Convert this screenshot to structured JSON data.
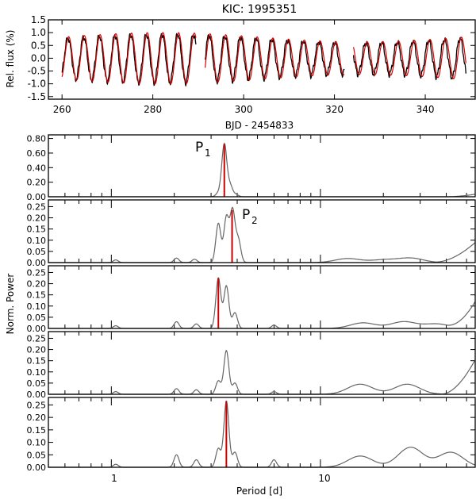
{
  "chart_data": [
    {
      "type": "line",
      "title": "KIC: 1995351",
      "xlabel": "BJD - 2454833",
      "ylabel": "Rel. flux (%)",
      "xlim": [
        257,
        351
      ],
      "ylim": [
        -1.6,
        1.5
      ],
      "x_ticks": [
        260,
        280,
        300,
        320,
        340
      ],
      "y_ticks": [
        -1.5,
        -1.0,
        -0.5,
        0.0,
        0.5,
        1.0,
        1.5
      ],
      "y_tick_labels": [
        "-1.5",
        "-1.0",
        "-0.5",
        "0.0",
        "0.5",
        "1.0",
        "1.5"
      ],
      "gaps": [
        [
          289.5,
          291.5
        ],
        [
          322.2,
          324.2
        ]
      ],
      "series": [
        {
          "role": "data",
          "color": "#000000",
          "period_days": 3.46,
          "amplitude": 0.95
        },
        {
          "role": "model",
          "color": "#dd0000",
          "period_days": 3.46,
          "amplitude": 1.0
        }
      ]
    },
    {
      "type": "line",
      "xscale": "log",
      "xlim": [
        0.5,
        55
      ],
      "ylim": [
        0,
        0.85
      ],
      "ylabel": "",
      "y_tick_labels": [
        "0.00",
        "0.20",
        "0.40",
        "0.60",
        "0.80"
      ],
      "annotation": {
        "text": "P",
        "sub": "1"
      },
      "marker": {
        "period": 3.47,
        "power": 0.72,
        "color": "#cc0000"
      },
      "peaks": [
        {
          "p": 3.47,
          "a": 0.72
        },
        {
          "p": 3.7,
          "a": 0.15
        },
        {
          "p": 3.25,
          "a": 0.05
        },
        {
          "p": 3.95,
          "a": 0.03
        }
      ],
      "tail": {
        "a": 0.035,
        "p0": 40,
        "p1": 55
      }
    },
    {
      "type": "line",
      "xscale": "log",
      "xlim": [
        0.5,
        55
      ],
      "ylim": [
        0,
        0.28
      ],
      "y_tick_labels": [
        "0.00",
        "0.05",
        "0.10",
        "0.15",
        "0.20",
        "0.25"
      ],
      "annotation": {
        "text": "P",
        "sub": "2"
      },
      "marker": {
        "period": 3.78,
        "power": 0.235,
        "color": "#cc0000"
      },
      "peaks": [
        {
          "p": 3.25,
          "a": 0.175
        },
        {
          "p": 3.55,
          "a": 0.2
        },
        {
          "p": 3.8,
          "a": 0.23
        },
        {
          "p": 4.05,
          "a": 0.1
        },
        {
          "p": 2.05,
          "a": 0.02
        },
        {
          "p": 2.5,
          "a": 0.015
        },
        {
          "p": 1.05,
          "a": 0.012
        }
      ],
      "bumps": [
        {
          "p": 13.5,
          "a": 0.018
        },
        {
          "p": 20.0,
          "a": 0.012
        },
        {
          "p": 27.0,
          "a": 0.02
        }
      ],
      "tail": {
        "a": 0.09,
        "p0": 35,
        "p1": 55
      }
    },
    {
      "type": "line",
      "xscale": "log",
      "xlim": [
        0.5,
        55
      ],
      "ylim": [
        0,
        0.28
      ],
      "ylabel": "Norm. Power",
      "y_tick_labels": [
        "0.00",
        "0.05",
        "0.10",
        "0.15",
        "0.20",
        "0.25"
      ],
      "marker": {
        "period": 3.25,
        "power": 0.225,
        "color": "#cc0000"
      },
      "peaks": [
        {
          "p": 3.25,
          "a": 0.225
        },
        {
          "p": 3.55,
          "a": 0.19
        },
        {
          "p": 3.9,
          "a": 0.07
        },
        {
          "p": 2.05,
          "a": 0.03
        },
        {
          "p": 2.55,
          "a": 0.02
        },
        {
          "p": 6.0,
          "a": 0.015
        },
        {
          "p": 1.05,
          "a": 0.012
        }
      ],
      "bumps": [
        {
          "p": 16.0,
          "a": 0.025
        },
        {
          "p": 25.0,
          "a": 0.03
        },
        {
          "p": 36.0,
          "a": 0.02
        }
      ],
      "tail": {
        "a": 0.12,
        "p0": 40,
        "p1": 55
      }
    },
    {
      "type": "line",
      "xscale": "log",
      "xlim": [
        0.5,
        55
      ],
      "ylim": [
        0,
        0.28
      ],
      "ylabel": "",
      "y_tick_labels": [
        "0.00",
        "0.05",
        "0.10",
        "0.15",
        "0.20",
        "0.25"
      ],
      "peaks": [
        {
          "p": 3.25,
          "a": 0.06
        },
        {
          "p": 3.55,
          "a": 0.195
        },
        {
          "p": 3.9,
          "a": 0.05
        },
        {
          "p": 2.05,
          "a": 0.025
        },
        {
          "p": 2.55,
          "a": 0.02
        },
        {
          "p": 6.0,
          "a": 0.012
        },
        {
          "p": 1.05,
          "a": 0.012
        }
      ],
      "bumps": [
        {
          "p": 15.5,
          "a": 0.045
        },
        {
          "p": 26.0,
          "a": 0.045
        }
      ],
      "tail": {
        "a": 0.155,
        "p0": 38,
        "p1": 55
      }
    },
    {
      "type": "line",
      "xscale": "log",
      "xlim": [
        0.5,
        55
      ],
      "ylim": [
        0,
        0.28
      ],
      "xlabel": "Period [d]",
      "x_ticks": [
        1,
        10
      ],
      "x_tick_labels": [
        "1",
        "10"
      ],
      "y_tick_labels": [
        "0.00",
        "0.05",
        "0.10",
        "0.15",
        "0.20",
        "0.25"
      ],
      "marker": {
        "period": 3.55,
        "power": 0.265,
        "color": "#cc0000"
      },
      "peaks": [
        {
          "p": 3.25,
          "a": 0.075
        },
        {
          "p": 3.55,
          "a": 0.265
        },
        {
          "p": 3.9,
          "a": 0.06
        },
        {
          "p": 2.05,
          "a": 0.05
        },
        {
          "p": 2.55,
          "a": 0.03
        },
        {
          "p": 6.0,
          "a": 0.03
        },
        {
          "p": 1.05,
          "a": 0.012
        }
      ],
      "bumps": [
        {
          "p": 15.5,
          "a": 0.045
        },
        {
          "p": 27.0,
          "a": 0.08
        },
        {
          "p": 42.0,
          "a": 0.06
        }
      ]
    }
  ]
}
